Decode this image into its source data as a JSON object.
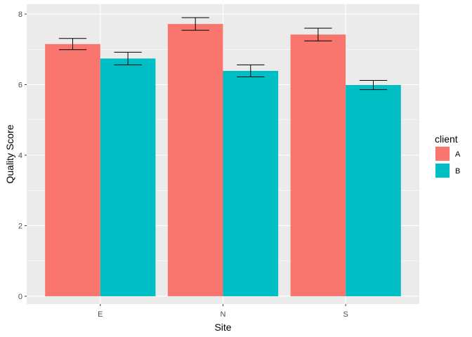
{
  "chart_data": {
    "type": "bar",
    "xlabel": "Site",
    "ylabel": "Quality Score",
    "categories": [
      "E",
      "N",
      "S"
    ],
    "ylim": [
      -0.22,
      8.28
    ],
    "yticks": [
      0,
      2,
      4,
      6,
      8
    ],
    "ytick_labels": [
      "0",
      "2",
      "4",
      "6",
      "8"
    ],
    "grid": true,
    "legend": {
      "title": "client",
      "position": "right"
    },
    "series": [
      {
        "name": "A",
        "color": "#F8766D",
        "values": [
          7.15,
          7.72,
          7.42
        ],
        "error": [
          0.16,
          0.18,
          0.18
        ]
      },
      {
        "name": "B",
        "color": "#00BFC4",
        "values": [
          6.74,
          6.39,
          5.99
        ],
        "error": [
          0.18,
          0.17,
          0.13
        ]
      }
    ]
  }
}
